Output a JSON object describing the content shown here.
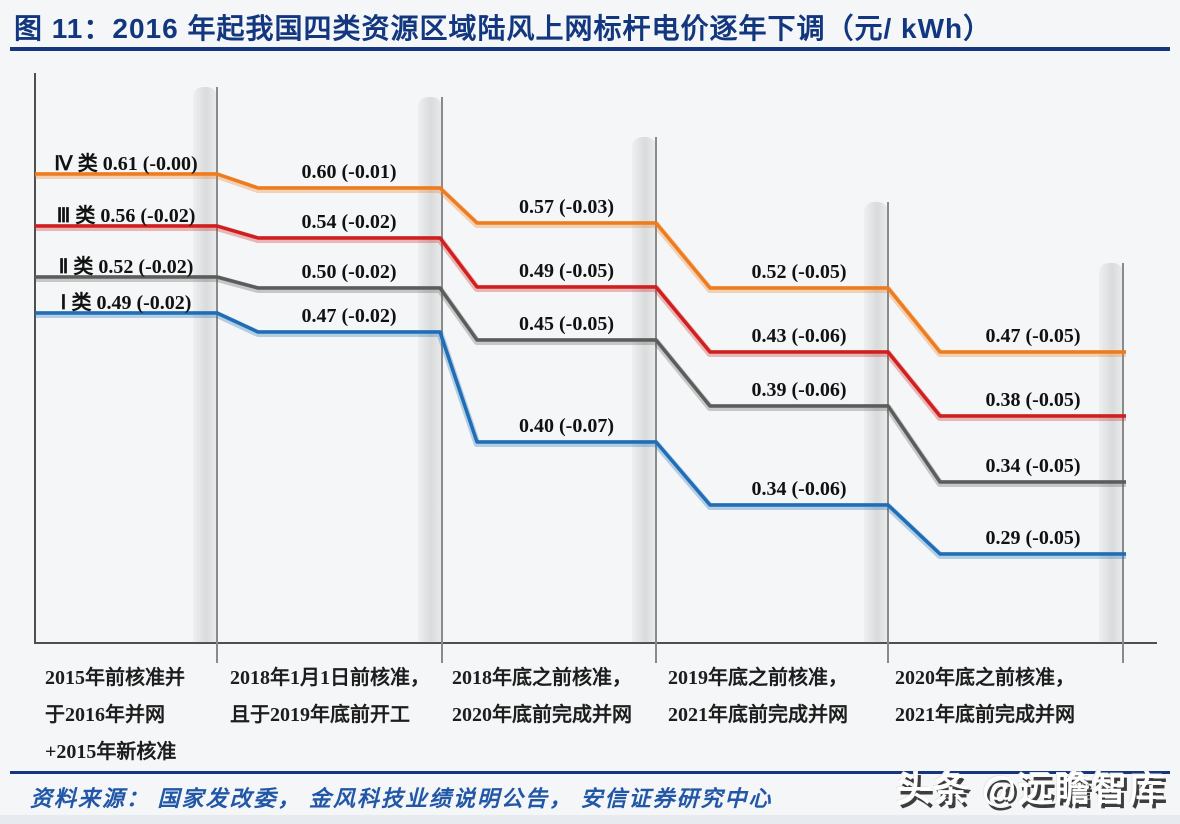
{
  "figure": {
    "title": "图 11：2016 年起我国四类资源区域陆风上网标杆电价逐年下调（元/ kWh）",
    "source_note": "资料来源： 国家发改委， 金风科技业绩说明公告， 安信证券研究中心",
    "watermark": "头条 @远瞻智库"
  },
  "colors": {
    "title_navy": "#12377f",
    "divider_navy": "#15357c",
    "source_blue": "#2257a8",
    "zone4_orange": "#ee7c1e",
    "zone3_red": "#cf1f1f",
    "zone2_gray": "#5c5c5c",
    "zone1_blue": "#1e6db6"
  },
  "chart_data": {
    "type": "line",
    "subtype": "step-down",
    "title": "2016 年起我国四类资源区域陆风上网标杆电价逐年下调",
    "unit": "元/kWh",
    "grid": false,
    "legend_position": "inline-first-segment",
    "ylim": [
      0.25,
      0.65
    ],
    "x_categories": [
      [
        "2015年前核准并",
        "于2016年并网",
        "+2015年新核准"
      ],
      [
        "2018年1月1日前核准，",
        "且于2019年底前开工"
      ],
      [
        "2018年底之前核准，",
        "2020年底前完成并网"
      ],
      [
        "2019年底之前核准，",
        "2021年底前完成并网"
      ],
      [
        "2020年底之前核准，",
        "2021年底前完成并网"
      ]
    ],
    "series": [
      {
        "id": "zone-4",
        "name": "Ⅳ 类",
        "color": "#ee7c1e",
        "values": [
          0.61,
          0.6,
          0.57,
          0.52,
          0.47
        ],
        "changes": [
          0.0,
          -0.01,
          -0.03,
          -0.05,
          -0.05
        ],
        "labels": [
          "0.61 (-0.00)",
          "0.60 (-0.01)",
          "0.57 (-0.03)",
          "0.52 (-0.05)",
          "0.47 (-0.05)"
        ]
      },
      {
        "id": "zone-3",
        "name": "Ⅲ 类",
        "color": "#cf1f1f",
        "values": [
          0.56,
          0.54,
          0.49,
          0.43,
          0.38
        ],
        "changes": [
          -0.02,
          -0.02,
          -0.05,
          -0.06,
          -0.05
        ],
        "labels": [
          "0.56 (-0.02)",
          "0.54 (-0.02)",
          "0.49 (-0.05)",
          "0.43 (-0.06)",
          "0.38 (-0.05)"
        ]
      },
      {
        "id": "zone-2",
        "name": "Ⅱ 类",
        "color": "#5c5c5c",
        "values": [
          0.52,
          0.5,
          0.45,
          0.39,
          0.34
        ],
        "changes": [
          -0.02,
          -0.02,
          -0.05,
          -0.06,
          -0.05
        ],
        "labels": [
          "0.52 (-0.02)",
          "0.50 (-0.02)",
          "0.45 (-0.05)",
          "0.39 (-0.06)",
          "0.34 (-0.05)"
        ]
      },
      {
        "id": "zone-1",
        "name": "Ⅰ 类",
        "color": "#1e6db6",
        "values": [
          0.49,
          0.47,
          0.4,
          0.34,
          0.29
        ],
        "changes": [
          -0.02,
          -0.02,
          -0.07,
          -0.06,
          -0.05
        ],
        "labels": [
          "0.49 (-0.02)",
          "0.47 (-0.02)",
          "0.40 (-0.07)",
          "0.34 (-0.06)",
          "0.29 (-0.05)"
        ]
      }
    ]
  }
}
